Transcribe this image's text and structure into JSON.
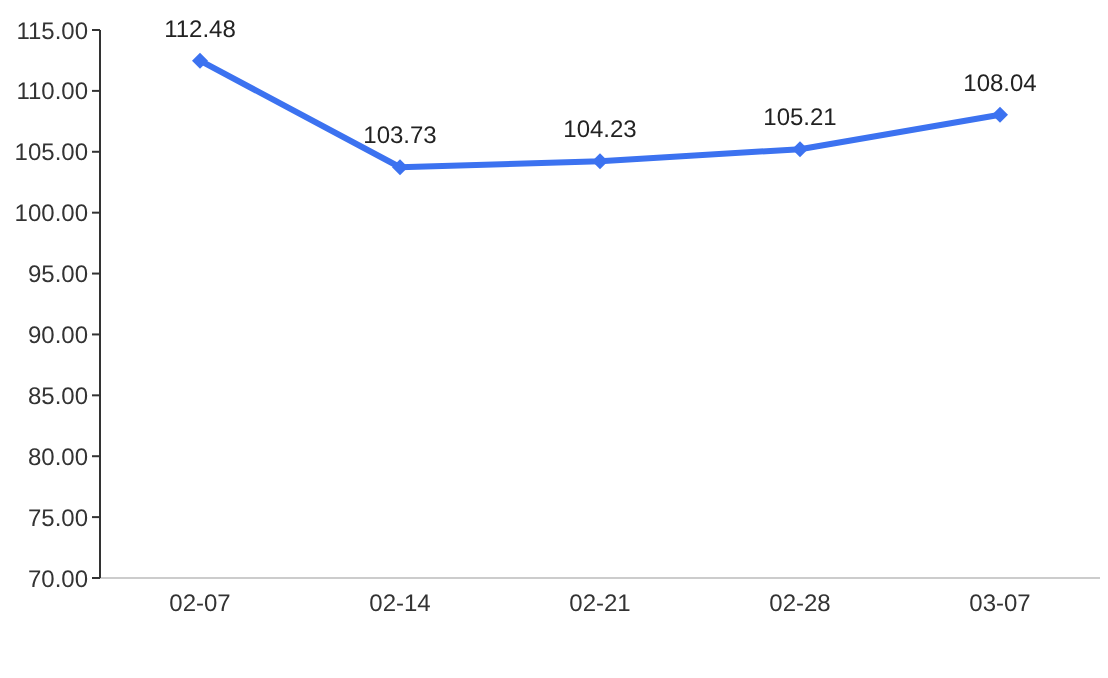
{
  "chart_data": {
    "type": "line",
    "categories": [
      "02-07",
      "02-14",
      "02-21",
      "02-28",
      "03-07"
    ],
    "series": [
      {
        "color": "#3c72f0",
        "values": [
          112.48,
          103.73,
          104.23,
          105.21,
          108.04
        ]
      }
    ],
    "ylim": [
      70,
      115
    ],
    "yticks": [
      {
        "value": 70,
        "label": "70.00"
      },
      {
        "value": 75,
        "label": "75.00"
      },
      {
        "value": 80,
        "label": "80.00"
      },
      {
        "value": 85,
        "label": "85.00"
      },
      {
        "value": 90,
        "label": "90.00"
      },
      {
        "value": 95,
        "label": "95.00"
      },
      {
        "value": 100,
        "label": "100.00"
      },
      {
        "value": 105,
        "label": "105.00"
      },
      {
        "value": 110,
        "label": "110.00"
      },
      {
        "value": 115,
        "label": "115.00"
      }
    ],
    "data_labels": true,
    "marker": "diamond",
    "line_style": "solid",
    "grid": false,
    "legend": false
  }
}
